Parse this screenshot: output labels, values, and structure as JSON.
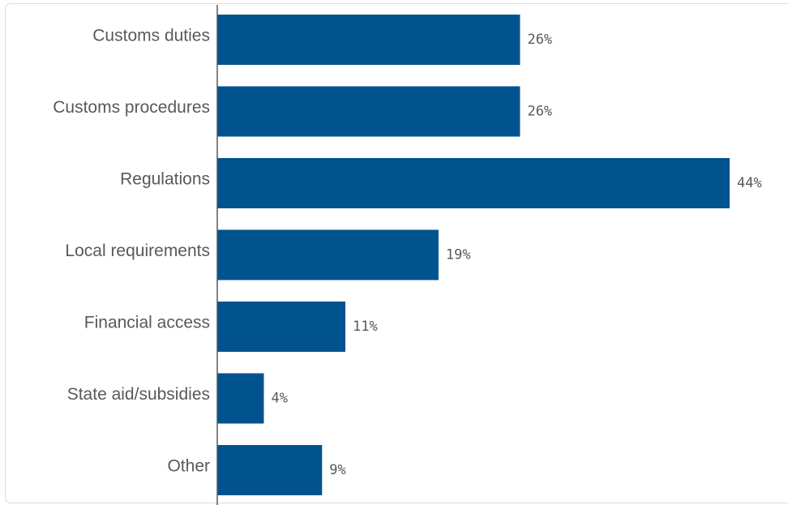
{
  "chart_data": {
    "type": "bar",
    "orientation": "horizontal",
    "categories": [
      "Customs duties",
      "Customs procedures",
      "Regulations",
      "Local requirements",
      "Financial access",
      "State aid/subsidies",
      "Other"
    ],
    "values": [
      26,
      26,
      44,
      19,
      11,
      4,
      9
    ],
    "value_labels": [
      "26%",
      "26%",
      "44%",
      "19%",
      "11%",
      "4%",
      "9%"
    ],
    "unit": "%",
    "xlim": [
      0,
      44
    ],
    "grid": false,
    "legend": "none",
    "bar_color": "#00538f",
    "text_color": "#595959",
    "axis_color": "#595959"
  }
}
